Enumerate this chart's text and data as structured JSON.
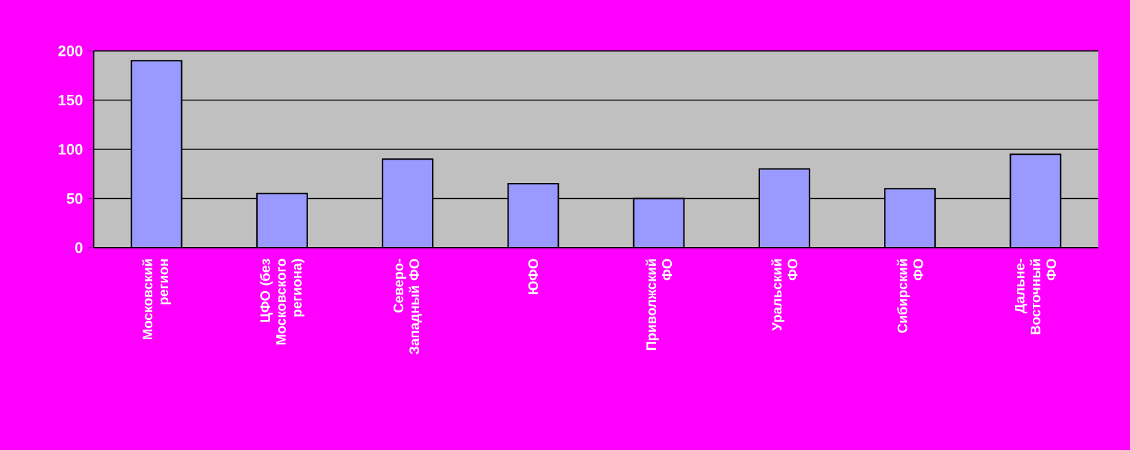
{
  "chart_data": {
    "type": "bar",
    "categories": [
      "Московский регион",
      "ЦФО (без Московского региона)",
      "Северо-Западный ФО",
      "ЮФО",
      "Приволжский ФО",
      "Уральский ФО",
      "Сибирский ФО",
      "Дальне-Восточный ФО"
    ],
    "values": [
      190,
      55,
      90,
      65,
      50,
      80,
      60,
      95
    ],
    "color": "#9999ff",
    "ylim": [
      0,
      200
    ],
    "yticks": [
      0,
      50,
      100,
      150,
      200
    ],
    "grid": "y"
  }
}
